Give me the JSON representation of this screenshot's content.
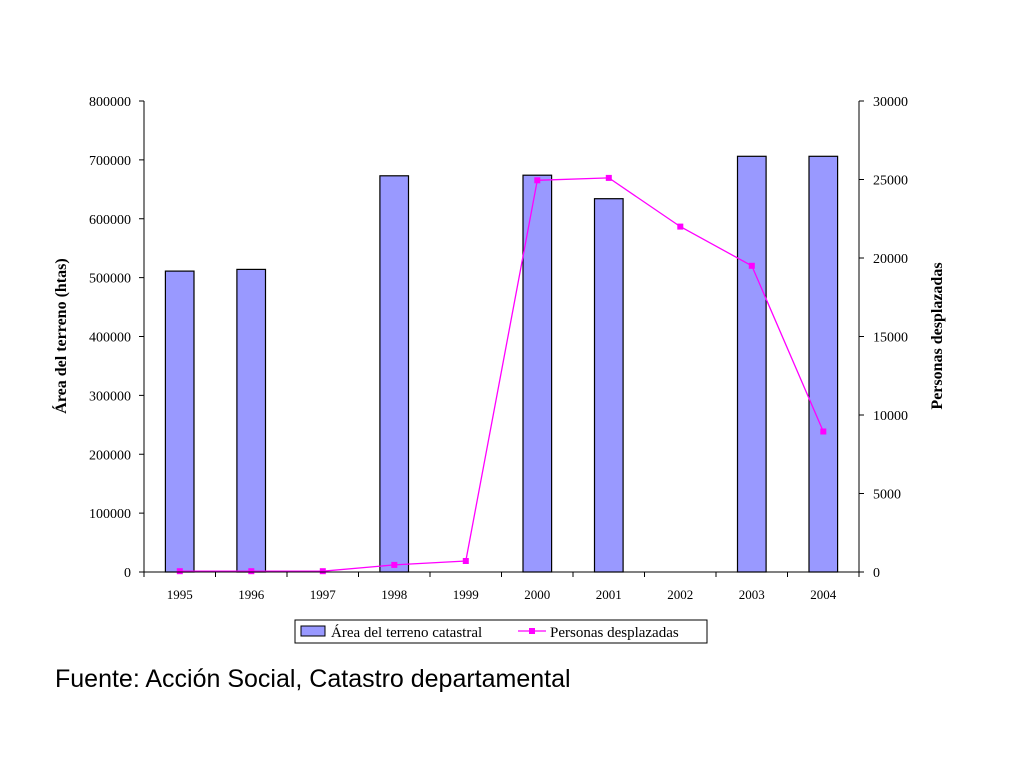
{
  "chart_data": {
    "type": "bar",
    "categories": [
      "1995",
      "1996",
      "1997",
      "1998",
      "1999",
      "2000",
      "2001",
      "2002",
      "2003",
      "2004"
    ],
    "series": [
      {
        "name": "Área del terreno catastral",
        "kind": "bar",
        "axis": "left",
        "color": "#9999ff",
        "values": [
          511000,
          514000,
          null,
          673000,
          null,
          674000,
          634000,
          null,
          706000,
          706000
        ]
      },
      {
        "name": "Personas desplazadas",
        "kind": "line",
        "axis": "right",
        "color": "#ff00ff",
        "values": [
          50,
          50,
          50,
          450,
          700,
          24950,
          25100,
          22000,
          19500,
          8950
        ]
      }
    ],
    "ylabel": "Área del terreno (htas)",
    "y2label": "Personas desplazadas",
    "ylim": [
      0,
      800000
    ],
    "y2lim": [
      0,
      30000
    ],
    "yticks": [
      "0",
      "100000",
      "200000",
      "300000",
      "400000",
      "500000",
      "600000",
      "700000",
      "800000"
    ],
    "y2ticks": [
      "0",
      "5000",
      "10000",
      "15000",
      "20000",
      "25000",
      "30000"
    ],
    "legend_position": "bottom",
    "grid": false
  },
  "source_note": "Fuente: Acción Social, Catastro departamental"
}
